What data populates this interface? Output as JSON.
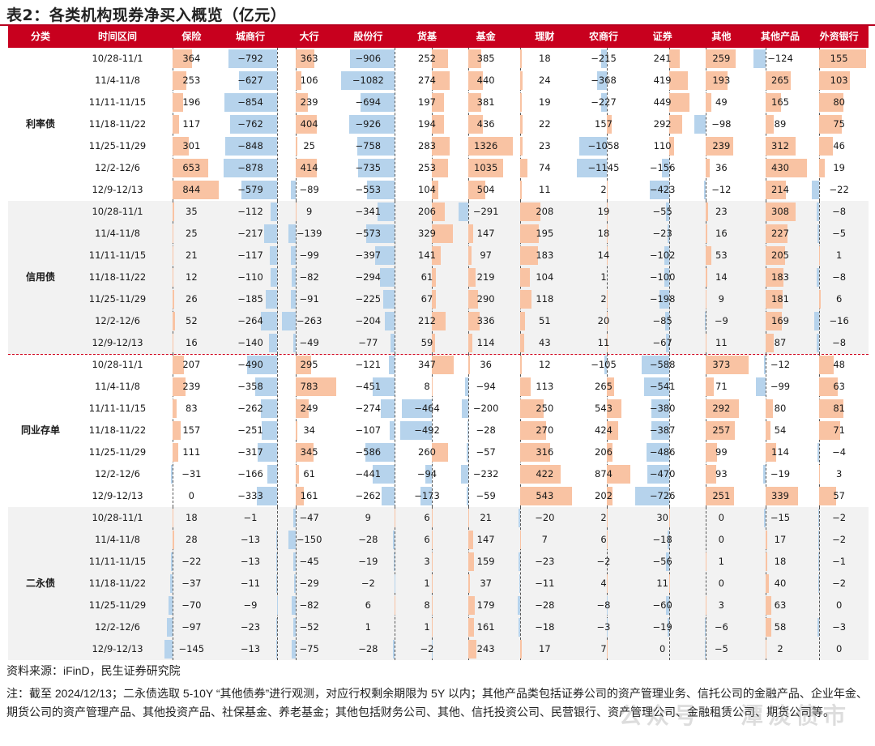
{
  "title": "表2：各类机构现券净买入概览（亿元）",
  "columns": [
    "分类",
    "时间区间",
    "保险",
    "城商行",
    "大行",
    "股份行",
    "货基",
    "基金",
    "理财",
    "农商行",
    "证券",
    "其他",
    "其他产品",
    "外资银行"
  ],
  "periods": [
    "10/28-11/1",
    "11/4-11/8",
    "11/11-11/15",
    "11/18-11/22",
    "11/25-11/29",
    "12/2-12/6",
    "12/9-12/13"
  ],
  "groups": [
    {
      "name": "利率债",
      "rows": [
        [
          364,
          -792,
          363,
          -906,
          252,
          385,
          18,
          -215,
          241,
          259,
          -124,
          155
        ],
        [
          253,
          -627,
          106,
          -1082,
          274,
          440,
          24,
          -368,
          419,
          193,
          265,
          103
        ],
        [
          196,
          -854,
          239,
          -694,
          197,
          381,
          19,
          -227,
          449,
          49,
          165,
          80
        ],
        [
          117,
          -762,
          404,
          -926,
          194,
          436,
          22,
          157,
          292,
          -98,
          89,
          75
        ],
        [
          301,
          -848,
          25,
          -758,
          283,
          1326,
          23,
          -1058,
          110,
          239,
          312,
          46
        ],
        [
          653,
          -878,
          414,
          -735,
          253,
          1035,
          74,
          -1145,
          -156,
          36,
          430,
          19
        ],
        [
          844,
          -579,
          -89,
          -553,
          104,
          504,
          11,
          2,
          -423,
          -12,
          214,
          -22
        ]
      ]
    },
    {
      "name": "信用债",
      "rows": [
        [
          35,
          -112,
          9,
          -341,
          206,
          -291,
          208,
          19,
          -55,
          23,
          308,
          -8
        ],
        [
          25,
          -217,
          -139,
          -573,
          329,
          147,
          195,
          18,
          -23,
          16,
          227,
          -5
        ],
        [
          21,
          -117,
          -99,
          -397,
          141,
          97,
          183,
          14,
          -102,
          53,
          205,
          1
        ],
        [
          12,
          -110,
          -82,
          -294,
          61,
          219,
          104,
          1,
          -100,
          14,
          183,
          -8
        ],
        [
          26,
          -185,
          -91,
          -225,
          67,
          290,
          118,
          2,
          -198,
          9,
          181,
          6
        ],
        [
          52,
          -264,
          -263,
          -204,
          212,
          336,
          51,
          20,
          -85,
          -9,
          169,
          -16
        ],
        [
          16,
          -140,
          -49,
          -77,
          59,
          114,
          43,
          11,
          -67,
          11,
          87,
          -8
        ]
      ]
    },
    {
      "name": "同业存单",
      "rows": [
        [
          207,
          -490,
          295,
          -121,
          347,
          36,
          12,
          -105,
          -588,
          373,
          -12,
          48
        ],
        [
          239,
          -358,
          783,
          -451,
          8,
          -94,
          113,
          265,
          -541,
          71,
          -99,
          63
        ],
        [
          83,
          -262,
          249,
          -274,
          -464,
          -200,
          250,
          543,
          -380,
          292,
          80,
          81
        ],
        [
          157,
          -251,
          34,
          -107,
          -492,
          -28,
          270,
          424,
          -387,
          257,
          54,
          71
        ],
        [
          111,
          -317,
          345,
          -586,
          260,
          -57,
          316,
          206,
          -486,
          99,
          114,
          -4
        ],
        [
          -31,
          -166,
          61,
          -441,
          -94,
          -232,
          422,
          874,
          -470,
          93,
          -19,
          3
        ],
        [
          0,
          -333,
          161,
          -262,
          -173,
          -59,
          543,
          202,
          -726,
          251,
          339,
          57
        ]
      ]
    },
    {
      "name": "二永债",
      "rows": [
        [
          18,
          -1,
          -47,
          9,
          6,
          21,
          -20,
          2,
          30,
          0,
          -15,
          -2
        ],
        [
          28,
          -13,
          -150,
          -28,
          6,
          147,
          7,
          6,
          -18,
          0,
          17,
          -2
        ],
        [
          -22,
          -13,
          -45,
          -19,
          3,
          159,
          -23,
          -2,
          -56,
          1,
          18,
          -1
        ],
        [
          -37,
          -11,
          -29,
          -2,
          1,
          37,
          -11,
          4,
          11,
          0,
          40,
          -2
        ],
        [
          -70,
          -9,
          -82,
          6,
          8,
          179,
          -28,
          -8,
          -60,
          3,
          63,
          0
        ],
        [
          -97,
          -23,
          -52,
          1,
          1,
          161,
          -18,
          -3,
          -19,
          -6,
          58,
          -3
        ],
        [
          -145,
          -13,
          -75,
          -28,
          -2,
          243,
          17,
          7,
          0,
          -5,
          2,
          0
        ]
      ]
    }
  ],
  "footer": {
    "source": "资料来源：iFinD，民生证券研究院",
    "note": "注：截至 2024/12/13；二永债选取 5-10Y “其他债券”进行观测，对应行权剩余期限为 5Y 以内；其他产品类包括证券公司的资产管理业务、信托公司的金融产品、企业年金、期货公司的资产管理产品、其他投资产品、社保基金、养老基金；其他包括财务公司、其他、信托投资公司、民营银行、资产管理公司、金融租赁公司、期货公司等。"
  },
  "watermark": "公众号 · 潭淡债市",
  "colors": {
    "header": "#c8001e",
    "positive_bar": "#f9c3a3",
    "negative_bar": "#b6d3ec",
    "separator": "#d0021b",
    "shaded_group": "#f2f2f2"
  }
}
